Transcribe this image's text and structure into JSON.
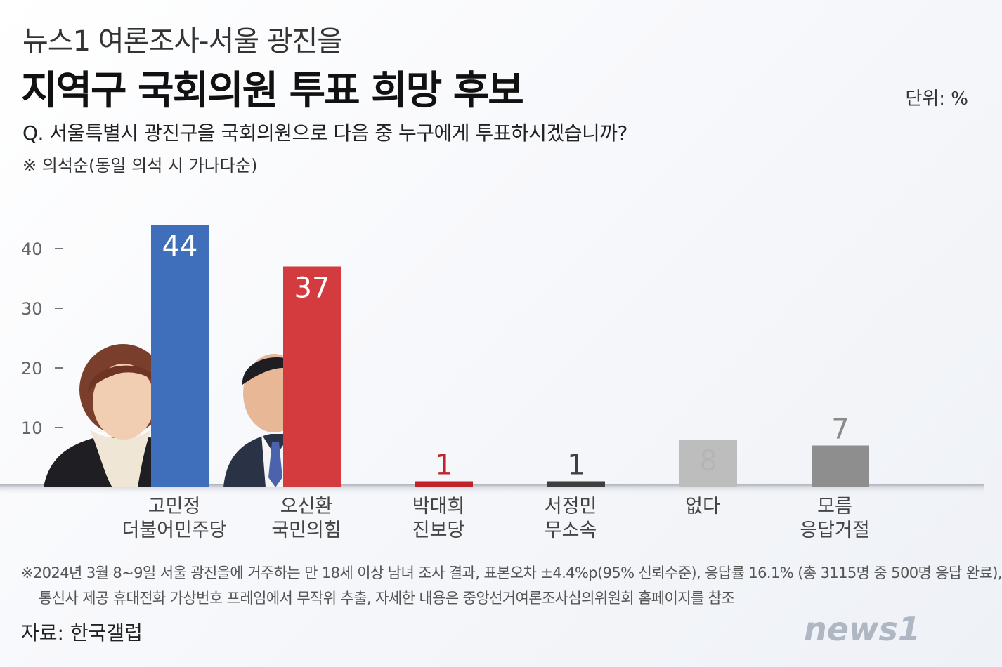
{
  "header": {
    "supertitle": "뉴스1 여론조사-서울 광진을",
    "title": "지역구 국회의원 투표 희망 후보",
    "unit": "단위: %",
    "question": "Q. 서울특별시 광진구을 국회의원으로 다음 중 누구에게 투표하시겠습니까?",
    "note": "※ 의석순(동일 의석 시 가나다순)"
  },
  "chart_data": {
    "type": "bar",
    "categories": [
      [
        "고민정",
        "더불어민주당"
      ],
      [
        "오신환",
        "국민의힘"
      ],
      [
        "박대희",
        "진보당"
      ],
      [
        "서정민",
        "무소속"
      ],
      [
        "없다"
      ],
      [
        "모름",
        "응답거절"
      ]
    ],
    "values": [
      44,
      37,
      1,
      1,
      8,
      7
    ],
    "colors": [
      "#3f6fba",
      "#d33b3f",
      "#c1232b",
      "#3f3f3f",
      "#bdbdbd",
      "#8e8e8e"
    ],
    "label_colors": [
      "#ffffff",
      "#ffffff",
      "#c1232b",
      "#3f3f3f",
      "#b5b5b5",
      "#8a8a8a"
    ],
    "yticks": [
      10,
      20,
      30,
      40
    ],
    "ylim": [
      0,
      44
    ],
    "grid": false
  },
  "footer": {
    "line1": "※2024년 3월 8~9일 서울 광진을에 거주하는 만 18세 이상 남녀 조사 결과, 표본오차 ±4.4%p(95% 신뢰수준), 응답률 16.1% (총 3115명 중 500명 응답 완료),",
    "line2": "통신사 제공 휴대전화 가상번호 프레임에서 무작위 추출, 자세한 내용은 중앙선거여론조사심의위원회 홈페이지를 참조",
    "source": "자료: 한국갤럽",
    "logo": "news1"
  }
}
